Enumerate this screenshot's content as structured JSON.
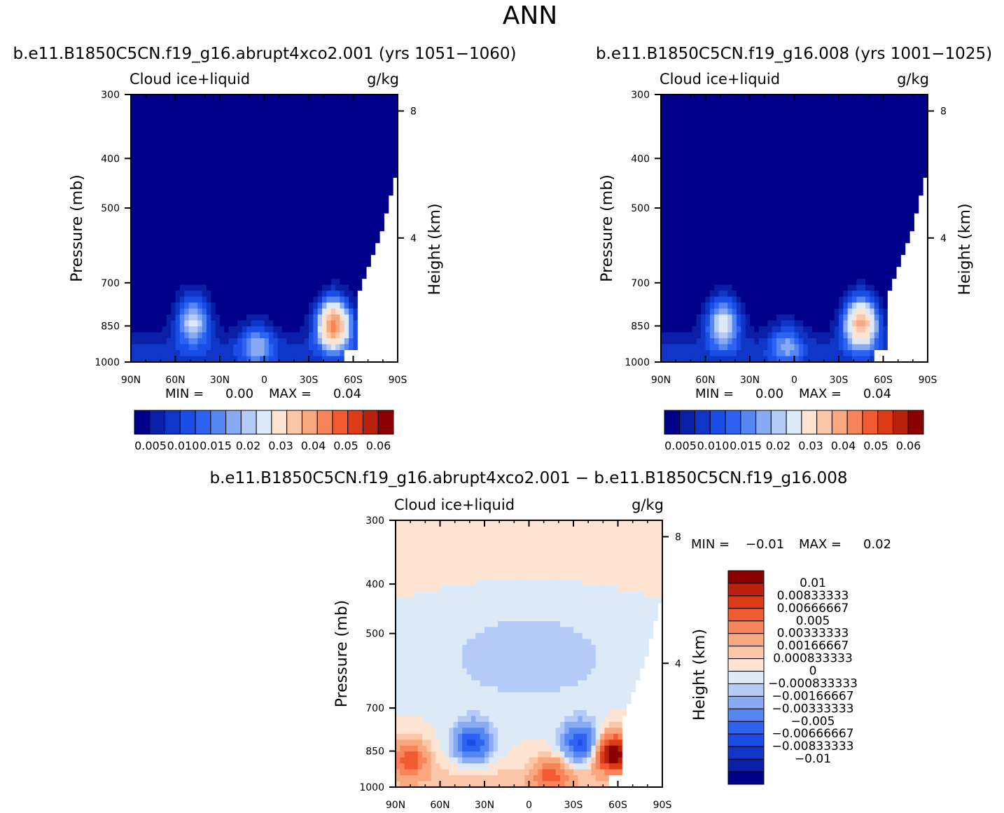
{
  "page_title": "ANN",
  "colors": {
    "seq": [
      "#00008b",
      "#0a1fa8",
      "#1036c8",
      "#1a4ce6",
      "#2e62f2",
      "#5586f2",
      "#88aaf2",
      "#b4cbf7",
      "#dceaf8",
      "#fde3d0",
      "#fcc7a8",
      "#f9a77f",
      "#f7845a",
      "#f25a32",
      "#dd3a16",
      "#b8220d",
      "#8b0000"
    ],
    "diff": [
      "#00008b",
      "#0a1fa8",
      "#1036c8",
      "#1a4ce6",
      "#2e62f2",
      "#5586f2",
      "#88aaf2",
      "#b4cbf7",
      "#dceaf8",
      "#fde3d0",
      "#fcc7a8",
      "#f9a77f",
      "#f7845a",
      "#f25a32",
      "#dd3a16",
      "#b8220d",
      "#8b0000"
    ]
  },
  "chart_data": [
    {
      "type": "heatmap",
      "title": "b.e11.B1850C5CN.f19_g16.abrupt4xco2.001  (yrs  1051−1060)",
      "variable_label": "Cloud  ice+liquid",
      "units_label": "g/kg",
      "xlabel": "",
      "ylabel": "Pressure  (mb)",
      "y2label": "Height  (km)",
      "x_ticks": [
        "90N",
        "60N",
        "30N",
        "0",
        "30S",
        "60S",
        "90S"
      ],
      "y_ticks": [
        "300",
        "400",
        "500",
        "700",
        "850",
        "1000"
      ],
      "y_tick_values": [
        300,
        400,
        500,
        700,
        850,
        1000
      ],
      "y2_ticks": [
        "8",
        "4"
      ],
      "y2_tick_values": [
        8,
        4
      ],
      "xlim": [
        90,
        -90
      ],
      "ylim": [
        300,
        1000
      ],
      "min_label": "MIN  =",
      "min_value": "0.00",
      "max_label": "MAX  =",
      "max_value": "0.04",
      "colorbar_labels": [
        "0.005",
        "0.010",
        "0.015",
        "0.02",
        "0.03",
        "0.04",
        "0.05",
        "0.06"
      ],
      "features": [
        {
          "lat": 48,
          "p": 830,
          "value": 0.02
        },
        {
          "lat": -47,
          "p": 845,
          "value": 0.04
        },
        {
          "lat": 5,
          "p": 925,
          "value": 0.012
        }
      ]
    },
    {
      "type": "heatmap",
      "title": "b.e11.B1850C5CN.f19_g16.008  (yrs  1001−1025)",
      "variable_label": "Cloud  ice+liquid",
      "units_label": "g/kg",
      "xlabel": "",
      "ylabel": "Pressure  (mb)",
      "y2label": "Height  (km)",
      "x_ticks": [
        "90N",
        "60N",
        "30N",
        "0",
        "30S",
        "60S",
        "90S"
      ],
      "y_ticks": [
        "300",
        "400",
        "500",
        "700",
        "850",
        "1000"
      ],
      "y_tick_values": [
        300,
        400,
        500,
        700,
        850,
        1000
      ],
      "y2_ticks": [
        "8",
        "4"
      ],
      "y2_tick_values": [
        8,
        4
      ],
      "xlim": [
        90,
        -90
      ],
      "ylim": [
        300,
        1000
      ],
      "min_label": "MIN  =",
      "min_value": "0.00",
      "max_label": "MAX  =",
      "max_value": "0.04",
      "colorbar_labels": [
        "0.005",
        "0.010",
        "0.015",
        "0.02",
        "0.03",
        "0.04",
        "0.05",
        "0.06"
      ],
      "features": [
        {
          "lat": 48,
          "p": 840,
          "value": 0.022
        },
        {
          "lat": -45,
          "p": 840,
          "value": 0.035
        },
        {
          "lat": 5,
          "p": 925,
          "value": 0.011
        }
      ]
    },
    {
      "type": "heatmap",
      "title": "b.e11.B1850C5CN.f19_g16.abrupt4xco2.001  −  b.e11.B1850C5CN.f19_g16.008",
      "variable_label": "Cloud  ice+liquid",
      "units_label": "g/kg",
      "xlabel": "",
      "ylabel": "Pressure  (mb)",
      "y2label": "Height  (km)",
      "x_ticks": [
        "90N",
        "60N",
        "30N",
        "0",
        "30S",
        "60S",
        "90S"
      ],
      "y_ticks": [
        "300",
        "400",
        "500",
        "700",
        "850",
        "1000"
      ],
      "y_tick_values": [
        300,
        400,
        500,
        700,
        850,
        1000
      ],
      "y2_ticks": [
        "8",
        "4"
      ],
      "y2_tick_values": [
        8,
        4
      ],
      "xlim": [
        90,
        -90
      ],
      "ylim": [
        300,
        1000
      ],
      "min_label": "MIN  =",
      "min_value": "−0.01",
      "max_label": "MAX  =",
      "max_value": "0.02",
      "colorbar_labels": [
        "0.01",
        "0.00833333",
        "0.00666667",
        "0.005",
        "0.00333333",
        "0.00166667",
        "0.000833333",
        "0",
        "−0.000833333",
        "−0.00166667",
        "−0.00333333",
        "−0.005",
        "−0.00666667",
        "−0.00833333",
        "−0.01"
      ],
      "features": [
        {
          "lat": 38,
          "p": 820,
          "value": -0.007
        },
        {
          "lat": -35,
          "p": 820,
          "value": -0.007
        },
        {
          "lat": -57,
          "p": 860,
          "value": 0.012
        },
        {
          "lat": 80,
          "p": 880,
          "value": 0.006
        },
        {
          "lat": -15,
          "p": 950,
          "value": 0.005
        }
      ]
    }
  ]
}
